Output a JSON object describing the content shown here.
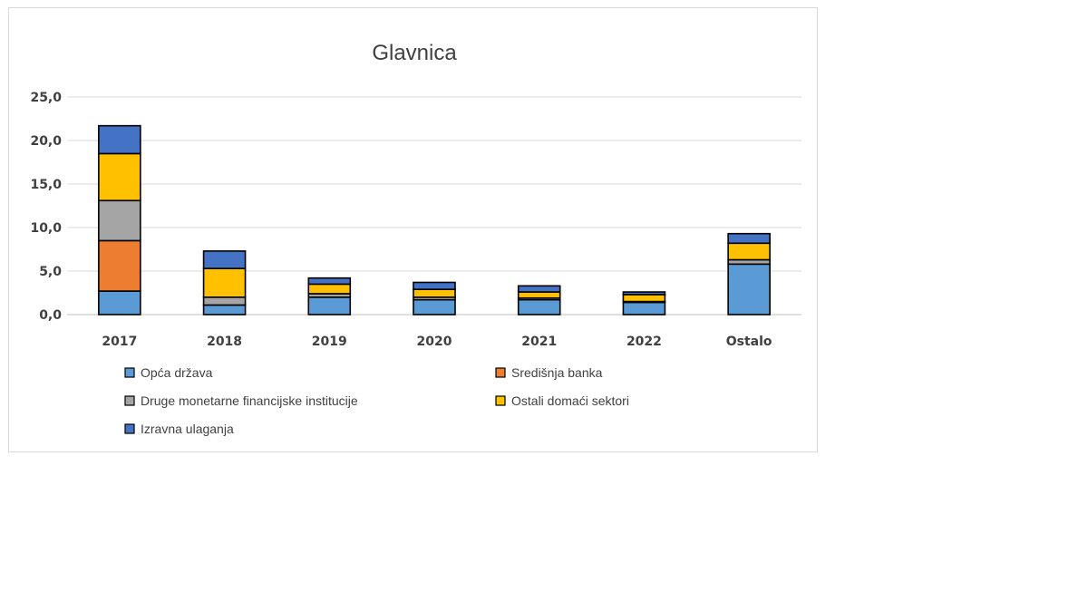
{
  "chart_data": {
    "type": "bar",
    "stacked": true,
    "title": "Glavnica",
    "xlabel": "",
    "ylabel": "",
    "categories": [
      "2017",
      "2018",
      "2019",
      "2020",
      "2021",
      "2022",
      "Ostalo"
    ],
    "ylim": [
      0,
      25
    ],
    "yticks": [
      "0,0",
      "5,0",
      "10,0",
      "15,0",
      "20,0",
      "25,0"
    ],
    "grid": true,
    "legend_position": "bottom",
    "series": [
      {
        "name": "Opća država",
        "color": "#5b9bd5",
        "values": [
          2.7,
          1.1,
          2.0,
          1.7,
          1.7,
          1.4,
          5.8
        ]
      },
      {
        "name": "Središnja banka",
        "color": "#ed7d31",
        "values": [
          5.8,
          0.0,
          0.0,
          0.0,
          0.0,
          0.0,
          0.0
        ]
      },
      {
        "name": "Druge monetarne financijske institucije",
        "color": "#a5a5a5",
        "values": [
          4.6,
          0.9,
          0.4,
          0.3,
          0.2,
          0.1,
          0.5
        ]
      },
      {
        "name": "Ostali domaći sektori",
        "color": "#ffc000",
        "values": [
          5.4,
          3.3,
          1.1,
          0.9,
          0.7,
          0.8,
          1.9
        ]
      },
      {
        "name": "Izravna ulaganja",
        "color": "#4472c4",
        "values": [
          3.2,
          2.0,
          0.7,
          0.8,
          0.7,
          0.3,
          1.1
        ]
      }
    ]
  }
}
